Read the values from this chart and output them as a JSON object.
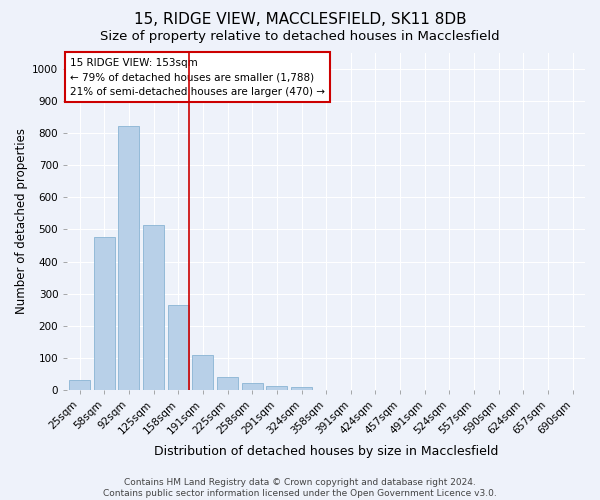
{
  "title": "15, RIDGE VIEW, MACCLESFIELD, SK11 8DB",
  "subtitle": "Size of property relative to detached houses in Macclesfield",
  "xlabel": "Distribution of detached houses by size in Macclesfield",
  "ylabel": "Number of detached properties",
  "categories": [
    "25sqm",
    "58sqm",
    "92sqm",
    "125sqm",
    "158sqm",
    "191sqm",
    "225sqm",
    "258sqm",
    "291sqm",
    "324sqm",
    "358sqm",
    "391sqm",
    "424sqm",
    "457sqm",
    "491sqm",
    "524sqm",
    "557sqm",
    "590sqm",
    "624sqm",
    "657sqm",
    "690sqm"
  ],
  "values": [
    33,
    477,
    820,
    515,
    265,
    110,
    40,
    22,
    12,
    10,
    0,
    0,
    0,
    0,
    0,
    0,
    0,
    0,
    0,
    0,
    0
  ],
  "bar_color": "#b8d0e8",
  "bar_edge_color": "#8ab4d4",
  "background_color": "#eef2fa",
  "grid_color": "#ffffff",
  "red_line_index": 4,
  "annotation_text": "15 RIDGE VIEW: 153sqm\n← 79% of detached houses are smaller (1,788)\n21% of semi-detached houses are larger (470) →",
  "annotation_box_color": "#ffffff",
  "annotation_box_edge_color": "#cc0000",
  "ylim": [
    0,
    1050
  ],
  "yticks": [
    0,
    100,
    200,
    300,
    400,
    500,
    600,
    700,
    800,
    900,
    1000
  ],
  "footnote": "Contains HM Land Registry data © Crown copyright and database right 2024.\nContains public sector information licensed under the Open Government Licence v3.0.",
  "title_fontsize": 11,
  "subtitle_fontsize": 9.5,
  "xlabel_fontsize": 9,
  "ylabel_fontsize": 8.5,
  "tick_fontsize": 7.5,
  "annotation_fontsize": 7.5,
  "footnote_fontsize": 6.5
}
